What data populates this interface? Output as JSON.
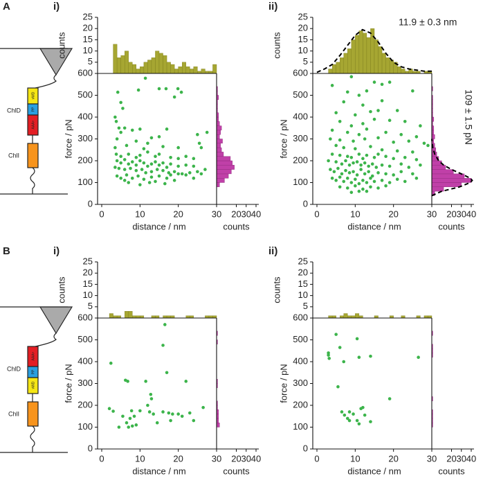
{
  "schematics": [
    {
      "top_label": "ChlD",
      "bottom_label": "ChlI",
      "domains": [
        "vWD",
        "PP",
        "AAA+"
      ]
    },
    {
      "top_label": "ChlD",
      "bottom_label": "ChlI",
      "domains": [
        "AAA+",
        "PP",
        "vWD"
      ]
    }
  ],
  "chart_data": [
    {
      "type": "scatter",
      "panel": "A",
      "subpanel": "i)",
      "xlabel": "distance / nm",
      "ylabel": "force / pN",
      "color": "#3cb44b",
      "xlim": [
        0,
        30
      ],
      "xticks": [
        0,
        10,
        20,
        30
      ],
      "ylim": [
        0,
        600
      ],
      "yticks": [
        0,
        100,
        200,
        300,
        400,
        500,
        600
      ],
      "x": [
        4.2,
        9.6,
        5,
        15,
        16.8,
        19.9,
        20.8,
        19,
        11.4,
        5.5,
        3.5,
        3.8,
        4.5,
        6,
        5,
        8,
        10,
        13,
        15,
        17,
        4,
        9,
        12,
        6.5,
        3.5,
        11,
        16,
        20,
        25,
        25.5,
        26,
        27.5,
        3.8,
        5,
        7,
        9,
        10,
        12,
        14,
        15,
        18,
        20,
        22,
        24,
        4,
        5,
        6,
        7,
        8,
        9,
        10,
        11,
        12,
        13,
        14,
        15,
        16,
        17,
        18,
        20,
        22,
        24,
        3.5,
        4.5,
        6,
        7.5,
        9,
        10.5,
        11.5,
        13,
        14.5,
        16,
        17.5,
        19,
        21,
        23,
        25,
        27,
        4,
        5,
        6.5,
        8,
        9.5,
        11,
        13,
        15,
        17,
        19,
        20,
        22,
        24,
        26,
        12.5,
        14,
        6,
        10,
        7,
        16.5,
        18
      ],
      "values": [
        514,
        524,
        467,
        530,
        530,
        530,
        514,
        492,
        578,
        440,
        400,
        380,
        350,
        350,
        330,
        340,
        345,
        305,
        310,
        345,
        300,
        290,
        280,
        270,
        260,
        255,
        265,
        260,
        320,
        280,
        260,
        330,
        230,
        220,
        230,
        215,
        225,
        240,
        220,
        230,
        215,
        210,
        220,
        210,
        200,
        190,
        205,
        185,
        195,
        180,
        200,
        190,
        175,
        185,
        195,
        180,
        190,
        170,
        185,
        175,
        180,
        175,
        170,
        165,
        160,
        165,
        155,
        160,
        145,
        150,
        160,
        155,
        145,
        150,
        140,
        145,
        150,
        160,
        130,
        120,
        135,
        120,
        130,
        115,
        125,
        130,
        120,
        110,
        140,
        135,
        120,
        140,
        100,
        105,
        110,
        90,
        100,
        95,
        135
      ],
      "top_histogram": {
        "ylabel": "counts",
        "color": "#a6a632",
        "ylim": [
          0,
          25
        ],
        "yticks": [
          5,
          10,
          15,
          20,
          25
        ],
        "bins": [
          0,
          1,
          2,
          3,
          4,
          5,
          6,
          7,
          8,
          9,
          10,
          11,
          12,
          13,
          14,
          15,
          16,
          17,
          18,
          19,
          20,
          21,
          22,
          23,
          24,
          25,
          26,
          27,
          28,
          29,
          30
        ],
        "values": [
          0,
          0,
          0,
          13,
          7,
          8,
          10,
          5,
          4,
          2,
          3,
          5,
          6,
          7,
          10,
          9,
          8,
          5,
          4,
          2,
          3,
          5,
          3,
          2,
          3,
          1,
          2,
          1,
          1,
          4
        ]
      },
      "right_histogram": {
        "xlabel": "counts",
        "color": "#c040a8",
        "xlim": [
          0,
          40
        ],
        "xticks": [
          20,
          30,
          40
        ],
        "bins": [
          0,
          20,
          40,
          60,
          80,
          100,
          120,
          140,
          160,
          180,
          200,
          220,
          240,
          260,
          280,
          300,
          320,
          340,
          360,
          380,
          400,
          420,
          440,
          460,
          480,
          500,
          520,
          540,
          560,
          580,
          600
        ],
        "values": [
          0,
          0,
          0,
          0,
          3,
          8,
          12,
          15,
          18,
          16,
          14,
          7,
          5,
          4,
          6,
          3,
          4,
          5,
          3,
          2,
          2,
          1,
          1,
          1,
          2,
          1,
          1,
          0,
          0,
          0
        ]
      }
    },
    {
      "type": "scatter",
      "subpanel": "ii)",
      "xlabel": "distance / nm",
      "ylabel": "force / pN",
      "color": "#3cb44b",
      "xlim": [
        0,
        30
      ],
      "xticks": [
        0,
        10,
        20,
        30
      ],
      "ylim": [
        0,
        600
      ],
      "yticks": [
        0,
        100,
        200,
        300,
        400,
        500,
        600
      ],
      "x": [
        4,
        8,
        11,
        13,
        15,
        17,
        19,
        9,
        7,
        12,
        17,
        25,
        21,
        5,
        10,
        14,
        16,
        6,
        9,
        12,
        15,
        19,
        23,
        27,
        4,
        8,
        11,
        13,
        18,
        22,
        26,
        3.5,
        6,
        9.5,
        12.5,
        16,
        20,
        24,
        28,
        5,
        7,
        10,
        14,
        17,
        21,
        25,
        29,
        4,
        6,
        8,
        9,
        11,
        12,
        13,
        15,
        16,
        18,
        20,
        23,
        26,
        3,
        5,
        6.5,
        7.5,
        8.5,
        9.5,
        10.5,
        11.5,
        12.5,
        13.5,
        14.5,
        15.5,
        17,
        19,
        22,
        24,
        27,
        3.5,
        4.5,
        5.5,
        6.5,
        7.5,
        8.5,
        9.5,
        10.5,
        11.5,
        12.5,
        13.5,
        14.5,
        16,
        18,
        20,
        22,
        25,
        4,
        5,
        6,
        7,
        8,
        9,
        10,
        11,
        12,
        13,
        14,
        15,
        17,
        19,
        21,
        23,
        26,
        6,
        8,
        10,
        12,
        14,
        16,
        18,
        9,
        13,
        11
      ],
      "values": [
        545,
        515,
        500,
        520,
        560,
        550,
        560,
        585,
        470,
        455,
        475,
        520,
        430,
        420,
        410,
        425,
        430,
        380,
        360,
        370,
        390,
        385,
        380,
        360,
        340,
        330,
        320,
        345,
        330,
        320,
        310,
        300,
        295,
        290,
        300,
        305,
        285,
        290,
        280,
        270,
        260,
        255,
        265,
        250,
        245,
        240,
        270,
        230,
        225,
        220,
        215,
        230,
        210,
        225,
        215,
        230,
        220,
        210,
        215,
        205,
        200,
        195,
        185,
        200,
        180,
        190,
        195,
        180,
        190,
        175,
        185,
        170,
        180,
        175,
        185,
        170,
        180,
        160,
        150,
        165,
        140,
        155,
        145,
        150,
        135,
        160,
        140,
        150,
        130,
        145,
        140,
        135,
        150,
        140,
        120,
        110,
        125,
        105,
        120,
        100,
        115,
        95,
        110,
        100,
        120,
        105,
        110,
        100,
        115,
        105,
        120,
        80,
        75,
        85,
        70,
        80,
        75,
        85,
        55,
        60,
        60
      ],
      "top_histogram": {
        "ylabel": "counts",
        "color": "#a6a632",
        "ylim": [
          0,
          25
        ],
        "yticks": [
          5,
          10,
          15,
          20,
          25
        ],
        "annotation": "11.9 ± 0.3 nm",
        "bins": [
          0,
          1,
          2,
          3,
          4,
          5,
          6,
          7,
          8,
          9,
          10,
          11,
          12,
          13,
          14,
          15,
          16,
          17,
          18,
          19,
          20,
          21,
          22,
          23,
          24,
          25,
          26,
          27,
          28,
          29,
          30
        ],
        "values": [
          0,
          0,
          0,
          2,
          4,
          5,
          7,
          9,
          11,
          15,
          17,
          19,
          18,
          16,
          20,
          15,
          12,
          9,
          7,
          6,
          5,
          3,
          2,
          1,
          2,
          1,
          1,
          0,
          1,
          1
        ],
        "fit": {
          "x": [
            0,
            2,
            4,
            6,
            8,
            10,
            11.9,
            14,
            16,
            18,
            20,
            22,
            24,
            26,
            28,
            30
          ],
          "values": [
            0.5,
            2,
            4,
            8,
            12.5,
            17,
            19.5,
            18,
            14,
            9,
            5,
            3,
            2,
            1.5,
            1,
            1
          ]
        }
      },
      "right_histogram": {
        "xlabel": "counts",
        "color": "#c040a8",
        "xlim": [
          0,
          40
        ],
        "xticks": [
          20,
          30,
          40
        ],
        "annotation": "109 ± 1.5 pN",
        "bins": [
          0,
          20,
          40,
          60,
          80,
          100,
          120,
          140,
          160,
          180,
          200,
          220,
          240,
          260,
          280,
          300,
          320,
          340,
          360,
          380,
          400,
          420,
          440,
          460,
          480,
          500,
          520,
          540,
          560,
          580,
          600
        ],
        "values": [
          0,
          0,
          3,
          12,
          30,
          40,
          33,
          22,
          14,
          10,
          7,
          5,
          4,
          3,
          2,
          3,
          2,
          2,
          1,
          2,
          1,
          1,
          1,
          1,
          1,
          0,
          1,
          0,
          0,
          0
        ],
        "fit": {
          "x": [
            40,
            60,
            80,
            100,
            110,
            120,
            140,
            160,
            180,
            200,
            230,
            260,
            300
          ],
          "values": [
            0,
            10,
            28,
            39,
            41,
            39,
            30,
            20,
            12,
            7,
            3,
            1,
            0
          ]
        }
      }
    },
    {
      "type": "scatter",
      "panel": "B",
      "subpanel": "i)",
      "xlabel": "distance / nm",
      "ylabel": "force / pN",
      "color": "#3cb44b",
      "xlim": [
        0,
        30
      ],
      "xticks": [
        0,
        10,
        20,
        30
      ],
      "ylim": [
        0,
        600
      ],
      "yticks": [
        0,
        100,
        200,
        300,
        400,
        500,
        600
      ],
      "x": [
        2.4,
        2,
        3,
        4.5,
        6.2,
        6.8,
        6.5,
        7.4,
        7.8,
        8,
        7,
        8.5,
        10,
        11.5,
        12,
        12.8,
        13,
        13.5,
        14.5,
        16,
        16.5,
        16,
        17.5,
        17,
        18,
        18.5,
        20,
        21,
        22,
        23,
        24,
        26.5,
        12.5,
        9,
        5.5
      ],
      "values": [
        393,
        185,
        173,
        100,
        315,
        310,
        120,
        140,
        175,
        105,
        100,
        150,
        175,
        310,
        200,
        250,
        230,
        160,
        120,
        475,
        570,
        170,
        165,
        350,
        130,
        160,
        160,
        150,
        310,
        165,
        130,
        190,
        170,
        110,
        150
      ],
      "top_histogram": {
        "ylabel": "counts",
        "color": "#a6a632",
        "ylim": [
          0,
          25
        ],
        "yticks": [
          5,
          10,
          15,
          20,
          25
        ],
        "bins": [
          0,
          1,
          2,
          3,
          4,
          5,
          6,
          7,
          8,
          9,
          10,
          11,
          12,
          13,
          14,
          15,
          16,
          17,
          18,
          19,
          20,
          21,
          22,
          23,
          24,
          25,
          26,
          27,
          28,
          29,
          30
        ],
        "values": [
          0,
          0,
          2,
          1,
          1,
          0,
          3,
          3,
          1,
          1,
          1,
          0,
          0,
          1,
          1,
          0,
          1,
          1,
          1,
          0,
          0,
          0,
          1,
          1,
          0,
          0,
          0,
          1,
          1,
          1
        ]
      },
      "right_histogram": {
        "xlabel": "counts",
        "color": "#c040a8",
        "xlim": [
          0,
          40
        ],
        "xticks": [
          20,
          30,
          40
        ],
        "bins": [
          0,
          20,
          40,
          60,
          80,
          100,
          120,
          140,
          160,
          180,
          200,
          220,
          240,
          260,
          280,
          300,
          320,
          340,
          360,
          380,
          400,
          420,
          440,
          460,
          480,
          500,
          520,
          540,
          560,
          580,
          600
        ],
        "values": [
          0,
          0,
          0,
          0,
          0,
          3,
          2,
          2,
          2,
          1,
          1,
          0,
          0,
          0,
          1,
          1,
          0,
          0,
          0,
          0,
          0,
          0,
          0,
          0,
          1,
          0,
          1,
          0,
          0,
          0
        ]
      }
    },
    {
      "type": "scatter",
      "subpanel": "ii)",
      "xlabel": "distance / nm",
      "ylabel": "force / pN",
      "color": "#3cb44b",
      "xlim": [
        0,
        30
      ],
      "xticks": [
        0,
        10,
        20,
        30
      ],
      "ylim": [
        0,
        600
      ],
      "yticks": [
        0,
        100,
        200,
        300,
        400,
        500,
        600
      ],
      "x": [
        3,
        3.2,
        5,
        6,
        5.5,
        7,
        6.5,
        7.2,
        8,
        8.5,
        8.5,
        10.5,
        11,
        10.5,
        11.5,
        11,
        12,
        12.5,
        14,
        14,
        19,
        26.5,
        9.5,
        3
      ],
      "values": [
        440,
        415,
        525,
        465,
        285,
        400,
        170,
        155,
        140,
        170,
        130,
        505,
        420,
        130,
        185,
        115,
        190,
        155,
        425,
        125,
        230,
        420,
        160,
        430
      ],
      "top_histogram": {
        "ylabel": "counts",
        "color": "#a6a632",
        "ylim": [
          0,
          25
        ],
        "yticks": [
          5,
          10,
          15,
          20,
          25
        ],
        "bins": [
          0,
          1,
          2,
          3,
          4,
          5,
          6,
          7,
          8,
          9,
          10,
          11,
          12,
          13,
          14,
          15,
          16,
          17,
          18,
          19,
          20,
          21,
          22,
          23,
          24,
          25,
          26,
          27,
          28,
          29,
          30
        ],
        "values": [
          0,
          0,
          0,
          1,
          1,
          0,
          1,
          2,
          1,
          1,
          2,
          1,
          0,
          0,
          0,
          1,
          0,
          0,
          0,
          1,
          0,
          0,
          1,
          0,
          0,
          0,
          1,
          0,
          1,
          1
        ]
      },
      "right_histogram": {
        "xlabel": "counts",
        "color": "#c040a8",
        "xlim": [
          0,
          40
        ],
        "xticks": [
          20,
          30,
          40
        ],
        "bins": [
          0,
          20,
          40,
          60,
          80,
          100,
          120,
          140,
          160,
          180,
          200,
          220,
          240,
          260,
          280,
          300,
          320,
          340,
          360,
          380,
          400,
          420,
          440,
          460,
          480,
          500,
          520,
          540,
          560,
          580,
          600
        ],
        "values": [
          0,
          0,
          0,
          0,
          0,
          1,
          1,
          1,
          1,
          0,
          0,
          1,
          0,
          0,
          0,
          0,
          0,
          0,
          0,
          0,
          0,
          1,
          1,
          1,
          0,
          0,
          1,
          0,
          0,
          0
        ]
      }
    }
  ]
}
